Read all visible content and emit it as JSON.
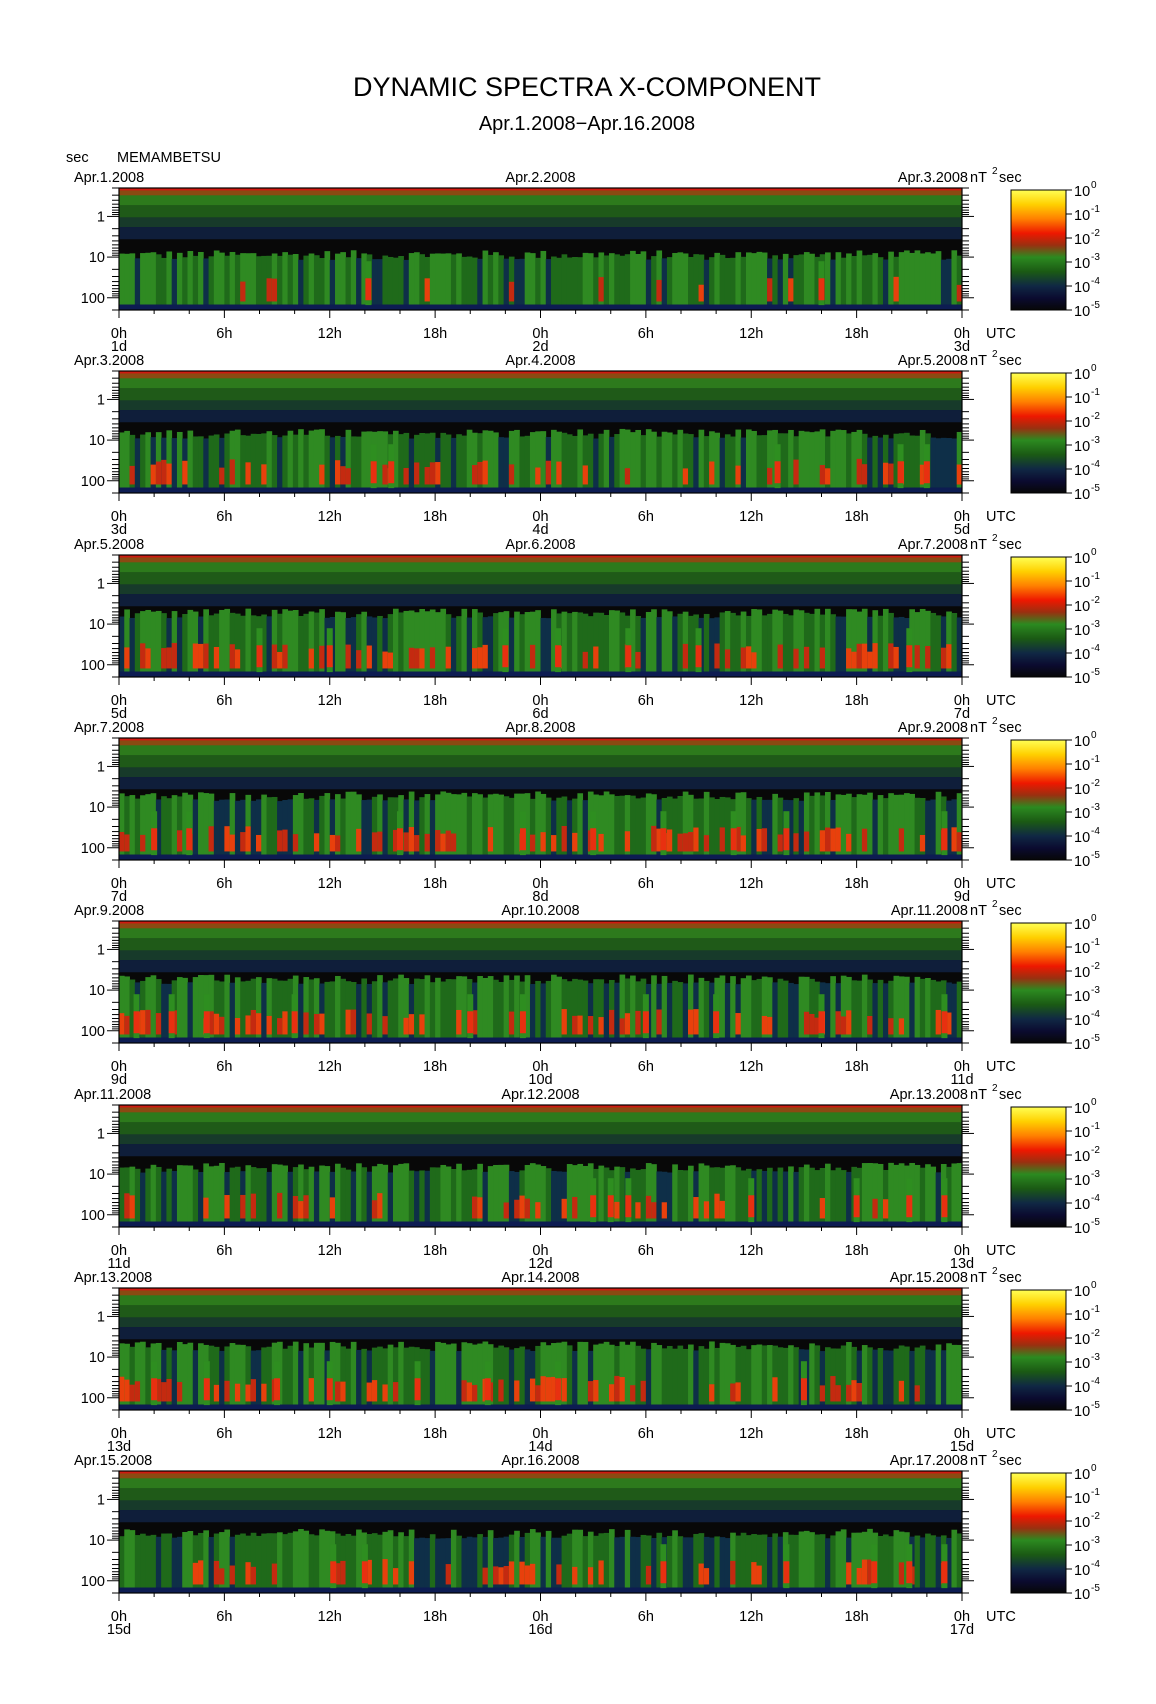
{
  "figure": {
    "title": "DYNAMIC SPECTRA X-COMPONENT",
    "subtitle": "Apr.1.2008−Apr.16.2008",
    "y_unit_label": "sec",
    "station": "MEMAMBETSU",
    "colorbar_unit": "nT",
    "colorbar_unit_exp": "2",
    "colorbar_unit_suffix": "sec",
    "time_zone_label": "UTC"
  },
  "chart_data": {
    "type": "heatmap",
    "x_axis": {
      "tick_labels": [
        "0h",
        "6h",
        "12h",
        "18h",
        "0h",
        "6h",
        "12h",
        "18h",
        "0h"
      ],
      "tick_hours": [
        0,
        6,
        12,
        18,
        24,
        30,
        36,
        42,
        48
      ],
      "range_hours": [
        0,
        48
      ]
    },
    "y_axis": {
      "scale": "log",
      "inverted": true,
      "unit": "sec",
      "tick_labels": [
        "1",
        "10",
        "100"
      ],
      "tick_values": [
        1,
        10,
        100
      ],
      "range": [
        0.2,
        200
      ]
    },
    "colorbar": {
      "scale": "log",
      "base_label": "10",
      "exponents": [
        "0",
        "-1",
        "-2",
        "-3",
        "-4",
        "-5"
      ],
      "range": [
        1e-05,
        1
      ],
      "colors": [
        "#ffff44",
        "#ffc000",
        "#ff6a00",
        "#ee1a00",
        "#8a6010",
        "#2f8a1f",
        "#1e5e16",
        "#102a40",
        "#0c0c2c",
        "#080808"
      ]
    },
    "panels": [
      {
        "date_left": "Apr.1.2008",
        "date_mid": "Apr.2.2008",
        "date_right": "Apr.3.2008",
        "day_labels": [
          "1d",
          "2d",
          "3d"
        ],
        "lf_activity": "low",
        "bursts_hours": [
          14.2,
          40.0
        ]
      },
      {
        "date_left": "Apr.3.2008",
        "date_mid": "Apr.4.2008",
        "date_right": "Apr.5.2008",
        "day_labels": [
          "3d",
          "4d",
          "5d"
        ],
        "lf_activity": "moderate",
        "bursts_hours": [
          14.5,
          15.5,
          37.5,
          44.5,
          46.0
        ]
      },
      {
        "date_left": "Apr.5.2008",
        "date_mid": "Apr.6.2008",
        "date_right": "Apr.7.2008",
        "day_labels": [
          "5d",
          "6d",
          "7d"
        ],
        "lf_activity": "high",
        "bursts_hours": [
          8,
          12,
          22,
          25,
          29,
          33,
          45
        ]
      },
      {
        "date_left": "Apr.7.2008",
        "date_mid": "Apr.8.2008",
        "date_right": "Apr.9.2008",
        "day_labels": [
          "7d",
          "8d",
          "9d"
        ],
        "lf_activity": "high",
        "bursts_hours": [
          2,
          4,
          16,
          23,
          27,
          31,
          35,
          38,
          47
        ]
      },
      {
        "date_left": "Apr.9.2008",
        "date_mid": "Apr.10.2008",
        "date_right": "Apr.11.2008",
        "day_labels": [
          "9d",
          "10d",
          "11d"
        ],
        "lf_activity": "high",
        "bursts_hours": [
          1,
          3,
          5,
          10,
          20,
          23,
          30,
          34,
          40,
          47
        ]
      },
      {
        "date_left": "Apr.11.2008",
        "date_mid": "Apr.12.2008",
        "date_right": "Apr.13.2008",
        "day_labels": [
          "11d",
          "12d",
          "13d"
        ],
        "lf_activity": "moderate",
        "bursts_hours": [
          27,
          28,
          29,
          36,
          42,
          45,
          47
        ]
      },
      {
        "date_left": "Apr.13.2008",
        "date_mid": "Apr.14.2008",
        "date_right": "Apr.15.2008",
        "day_labels": [
          "13d",
          "14d",
          "15d"
        ],
        "lf_activity": "high",
        "bursts_hours": [
          2,
          5,
          9,
          12,
          17,
          21,
          25,
          39
        ]
      },
      {
        "date_left": "Apr.15.2008",
        "date_mid": "Apr.16.2008",
        "date_right": "Apr.17.2008",
        "day_labels": [
          "15d",
          "16d",
          "17d"
        ],
        "lf_activity": "moderate",
        "bursts_hours": [
          12.2,
          14,
          31,
          38,
          43,
          45,
          47
        ]
      }
    ]
  }
}
